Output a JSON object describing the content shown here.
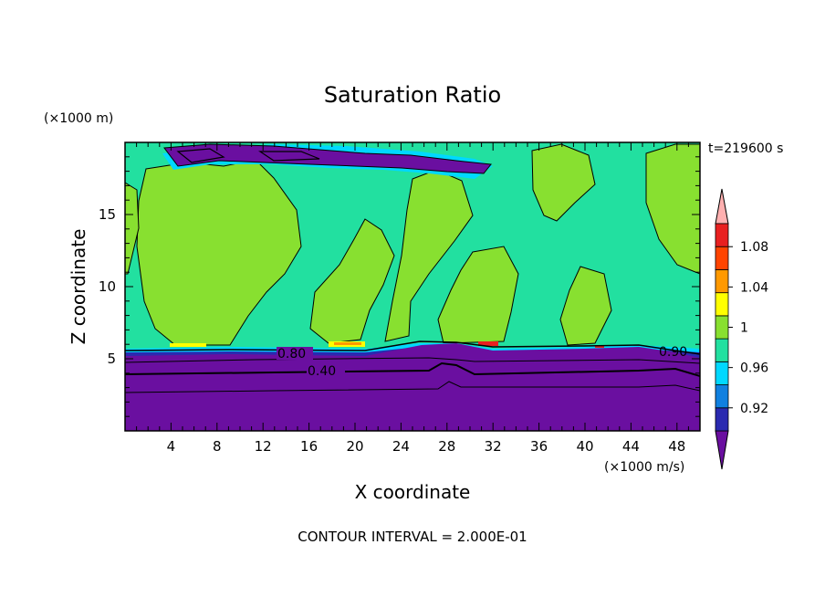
{
  "chart_data": {
    "type": "heatmap",
    "title": "Saturation Ratio",
    "xlabel": "X coordinate",
    "ylabel": "Z coordinate",
    "x_unit": "(×1000 m/s)",
    "y_unit": "(×1000 m)",
    "time_label": "t=219600 s",
    "footer": "CONTOUR INTERVAL = 2.000E-01",
    "xlim": [
      0,
      50
    ],
    "ylim": [
      0,
      20
    ],
    "x_ticks": [
      4,
      8,
      12,
      16,
      20,
      24,
      28,
      32,
      36,
      40,
      44,
      48
    ],
    "y_ticks": [
      5,
      10,
      15
    ],
    "colorbar": {
      "levels": [
        0.92,
        0.96,
        1,
        1.04,
        1.08
      ],
      "tick_labels": [
        "0.92",
        "0.96",
        "1",
        "1.04",
        "1.08"
      ],
      "colors": [
        "#6a0fa0",
        "#2a2ab0",
        "#1080e0",
        "#00d8ff",
        "#22e0a0",
        "#88e030",
        "#ffff00",
        "#ff9900",
        "#ff4400",
        "#e82020",
        "#ffb0b0"
      ]
    },
    "contour_labels": [
      {
        "text": "0.80",
        "x": 11.9,
        "z": 5.3
      },
      {
        "text": "0.40",
        "x": 13.9,
        "z": 4.2
      },
      {
        "text": "0.90",
        "x": 37.7,
        "z": 5.4
      }
    ]
  }
}
